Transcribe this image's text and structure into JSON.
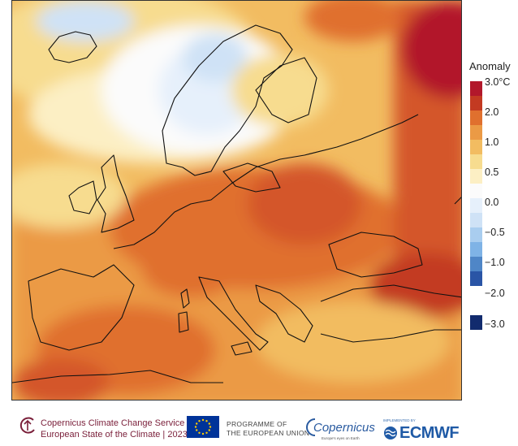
{
  "legend": {
    "title": "Anomaly",
    "items": [
      {
        "label": "3.0°C",
        "color": "#b2182b"
      },
      {
        "label": "2.0",
        "color": "#c33a22"
      },
      {
        "label": "",
        "color": "#e0702e"
      },
      {
        "label": "1.0",
        "color": "#eb9a45"
      },
      {
        "label": "",
        "color": "#f2bc61"
      },
      {
        "label": "0.5",
        "color": "#f7dc8f"
      },
      {
        "label": "",
        "color": "#fcefc4"
      },
      {
        "label": "0.0",
        "color": "#fbfbfb"
      },
      {
        "label": "",
        "color": "#e6f0fb"
      },
      {
        "label": "−0.5",
        "color": "#cfe2f6"
      },
      {
        "label": "",
        "color": "#a9cdef"
      },
      {
        "label": "−1.0",
        "color": "#7fb3e6"
      },
      {
        "label": "",
        "color": "#4f86c7"
      },
      {
        "label": "−2.0",
        "color": "#2a55a6"
      },
      {
        "label": "−3.0",
        "color": "#122b6e"
      }
    ]
  },
  "footer": {
    "c3s_line1": "Copernicus Climate Change Service",
    "c3s_line2": "European State of the Climate | 2023",
    "programme_line1": "PROGRAMME OF",
    "programme_line2": "THE EUROPEAN UNION",
    "copernicus": "Copernicus",
    "copernicus_sub": "Europe's eyes on Earth",
    "implemented_by": "IMPLEMENTED BY",
    "ecmwf": "ECMWF"
  },
  "colors": {
    "c3s_brand": "#7a1f3a",
    "eu_blue": "#003399",
    "eu_star": "#ffcc00",
    "ecmwf_blue": "#1f5aa6"
  }
}
